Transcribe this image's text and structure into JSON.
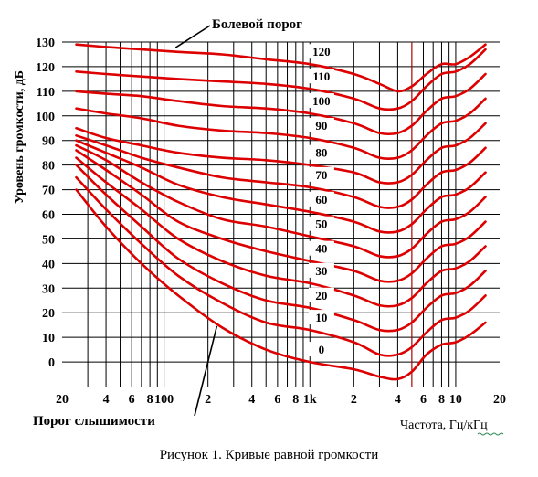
{
  "caption": "Рисунок 1. Кривые равной громкости",
  "chart_data": {
    "type": "line",
    "title": "",
    "xlabel": "Частота, Гц/кГц",
    "ylabel": "Уровень громкости, дБ",
    "xscale": "log",
    "xlim": [
      20,
      20000
    ],
    "ylim": [
      -10,
      130
    ],
    "grid": true,
    "y_ticks": [
      0,
      10,
      20,
      30,
      40,
      50,
      60,
      70,
      80,
      90,
      100,
      110,
      120,
      130
    ],
    "x_tick_labels": [
      {
        "v": 20,
        "t": "20"
      },
      {
        "v": 40,
        "t": "4"
      },
      {
        "v": 60,
        "t": "6"
      },
      {
        "v": 80,
        "t": "8"
      },
      {
        "v": 100,
        "t": "100"
      },
      {
        "v": 200,
        "t": "2"
      },
      {
        "v": 400,
        "t": "4"
      },
      {
        "v": 600,
        "t": "6"
      },
      {
        "v": 800,
        "t": "8"
      },
      {
        "v": 1000,
        "t": "1k"
      },
      {
        "v": 2000,
        "t": "2"
      },
      {
        "v": 4000,
        "t": "4"
      },
      {
        "v": 6000,
        "t": "6"
      },
      {
        "v": 8000,
        "t": "8"
      },
      {
        "v": 10000,
        "t": "10"
      },
      {
        "v": 20000,
        "t": "20"
      }
    ],
    "x_gridlines": [
      30,
      40,
      50,
      60,
      70,
      80,
      90,
      100,
      200,
      300,
      400,
      500,
      600,
      700,
      800,
      900,
      1000,
      2000,
      3000,
      4000,
      5000,
      6000,
      7000,
      8000,
      9000,
      10000
    ],
    "annotations": [
      {
        "text": "Болевой порог",
        "points_to": {
          "x": 120,
          "y": 127
        }
      },
      {
        "text": "Порог слышимости",
        "points_to": {
          "x": 230,
          "y": 16
        }
      }
    ],
    "series": [
      {
        "name": "0",
        "x": [
          25,
          40,
          70,
          125,
          250,
          500,
          1000,
          2000,
          3000,
          4000,
          5000,
          6300,
          8000,
          10000,
          12500,
          16000
        ],
        "y": [
          70,
          55,
          40,
          27,
          14,
          5,
          0,
          -3,
          -6,
          -7,
          -4,
          3,
          7,
          8,
          11,
          16
        ]
      },
      {
        "name": "10",
        "x": [
          25,
          40,
          70,
          125,
          250,
          500,
          1000,
          2000,
          3000,
          4000,
          5000,
          6300,
          8000,
          10000,
          12500,
          16000
        ],
        "y": [
          75,
          62,
          48,
          35,
          24,
          16,
          13,
          8,
          3,
          3,
          6,
          12,
          17,
          18,
          21,
          27
        ]
      },
      {
        "name": "20",
        "x": [
          25,
          40,
          70,
          125,
          250,
          500,
          1000,
          2000,
          3000,
          4000,
          5000,
          6300,
          8000,
          10000,
          12500,
          16000
        ],
        "y": [
          80,
          68,
          55,
          42,
          32,
          25,
          22,
          17,
          13,
          13,
          16,
          22,
          27,
          28,
          31,
          37
        ]
      },
      {
        "name": "30",
        "x": [
          25,
          40,
          70,
          125,
          250,
          500,
          1000,
          2000,
          3000,
          4000,
          5000,
          6300,
          8000,
          10000,
          12500,
          16000
        ],
        "y": [
          83,
          73,
          62,
          50,
          41,
          35,
          32,
          27,
          23,
          23,
          26,
          32,
          37,
          38,
          41,
          47
        ]
      },
      {
        "name": "40",
        "x": [
          25,
          40,
          70,
          125,
          250,
          500,
          1000,
          2000,
          3000,
          4000,
          5000,
          6300,
          8000,
          10000,
          12500,
          16000
        ],
        "y": [
          86,
          78,
          68,
          57,
          50,
          45,
          41,
          37,
          33,
          33,
          36,
          42,
          47,
          48,
          51,
          57
        ]
      },
      {
        "name": "50",
        "x": [
          25,
          40,
          70,
          125,
          250,
          500,
          1000,
          2000,
          3000,
          4000,
          5000,
          6300,
          8000,
          10000,
          12500,
          16000
        ],
        "y": [
          88,
          82,
          73,
          65,
          58,
          55,
          51,
          47,
          43,
          43,
          46,
          52,
          57,
          58,
          61,
          67
        ]
      },
      {
        "name": "60",
        "x": [
          25,
          40,
          70,
          125,
          250,
          500,
          1000,
          2000,
          3000,
          4000,
          5000,
          6300,
          8000,
          10000,
          12500,
          16000
        ],
        "y": [
          90,
          85,
          79,
          72,
          67,
          64,
          61,
          57,
          53,
          53,
          56,
          62,
          67,
          68,
          71,
          77
        ]
      },
      {
        "name": "70",
        "x": [
          25,
          40,
          70,
          125,
          250,
          500,
          1000,
          2000,
          3000,
          4000,
          5000,
          6300,
          8000,
          10000,
          12500,
          16000
        ],
        "y": [
          92,
          88,
          83,
          79,
          75,
          73,
          71,
          67,
          63,
          63,
          66,
          72,
          77,
          78,
          81,
          87
        ]
      },
      {
        "name": "80",
        "x": [
          25,
          40,
          70,
          125,
          250,
          500,
          1000,
          2000,
          3000,
          4000,
          5000,
          6300,
          8000,
          10000,
          12500,
          16000
        ],
        "y": [
          95,
          91,
          88,
          85,
          83,
          82,
          80,
          77,
          73,
          73,
          76,
          82,
          87,
          88,
          91,
          97
        ]
      },
      {
        "name": "90",
        "x": [
          25,
          40,
          70,
          125,
          250,
          500,
          1000,
          2000,
          3000,
          4000,
          5000,
          6300,
          8000,
          10000,
          12500,
          16000
        ],
        "y": [
          103,
          101,
          99,
          96,
          94,
          93,
          91,
          87,
          83,
          83,
          86,
          92,
          97,
          98,
          101,
          107
        ]
      },
      {
        "name": "100",
        "x": [
          25,
          40,
          70,
          125,
          250,
          500,
          1000,
          2000,
          3000,
          4000,
          5000,
          6300,
          8000,
          10000,
          12500,
          16000
        ],
        "y": [
          110,
          109,
          108,
          106,
          104,
          103,
          101,
          97,
          93,
          93,
          96,
          102,
          107,
          108,
          111,
          117
        ]
      },
      {
        "name": "110",
        "x": [
          25,
          40,
          70,
          125,
          250,
          500,
          1000,
          2000,
          3000,
          4000,
          5000,
          6300,
          8000,
          10000,
          12500,
          16000
        ],
        "y": [
          118,
          117,
          116,
          115,
          114,
          113,
          111,
          107,
          103,
          103,
          106,
          112,
          117,
          118,
          121,
          127
        ]
      },
      {
        "name": "120",
        "x": [
          25,
          40,
          70,
          125,
          250,
          500,
          1000,
          2000,
          3000,
          4000,
          5000,
          6300,
          8000,
          10000,
          12500,
          16000
        ],
        "y": [
          129,
          128,
          127,
          126,
          125,
          123,
          121,
          117,
          113,
          110,
          112,
          117,
          121,
          121,
          124,
          129
        ]
      }
    ]
  }
}
